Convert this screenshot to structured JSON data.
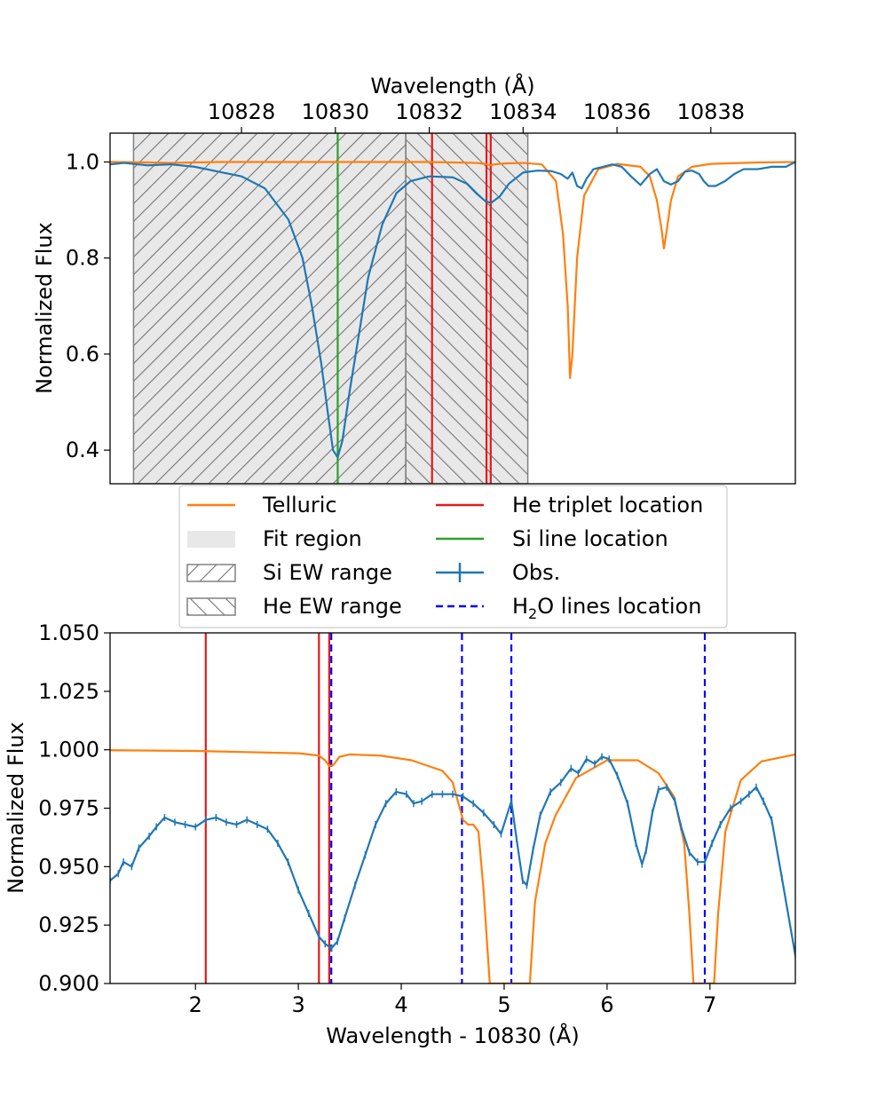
{
  "chart_data": [
    {
      "id": "top",
      "type": "line",
      "xlabel_top": "Wavelength (Å)",
      "ylabel": "Normalized Flux",
      "xlim": [
        10825.2,
        10839.8
      ],
      "ylim": [
        0.33,
        1.06
      ],
      "xticks": [
        10828,
        10830,
        10832,
        10834,
        10836,
        10838
      ],
      "xtick_labels": [
        "10828",
        "10830",
        "10832",
        "10834",
        "10836",
        "10838"
      ],
      "yticks": [
        0.4,
        0.6,
        0.8,
        1.0
      ],
      "ytick_labels": [
        "0.4",
        "0.6",
        "0.8",
        "1.0"
      ],
      "fit_region": [
        10825.7,
        10834.1
      ],
      "si_ew_range": [
        10825.7,
        10831.5
      ],
      "he_ew_range": [
        10831.5,
        10834.1
      ],
      "he_lines": [
        10832.06,
        10833.22,
        10833.31
      ],
      "si_line": 10830.05,
      "telluric": {
        "name": "Telluric",
        "color": "#ff7f0e",
        "x": [
          10825.2,
          10826,
          10826.5,
          10827,
          10827.5,
          10828,
          10829,
          10830,
          10831,
          10832,
          10832.5,
          10833,
          10833.2,
          10833.3,
          10833.4,
          10833.6,
          10834,
          10834.4,
          10834.7,
          10834.85,
          10834.95,
          10835.0,
          10835.05,
          10835.15,
          10835.3,
          10835.6,
          10836,
          10836.5,
          10836.7,
          10836.85,
          10836.95,
          10837.0,
          10837.05,
          10837.15,
          10837.3,
          10837.6,
          10838,
          10839,
          10839.8
        ],
        "y": [
          1.0,
          0.999,
          0.998,
          0.999,
          1.0,
          1.0,
          1.0,
          1.0,
          1.0,
          1.0,
          0.999,
          0.998,
          0.996,
          0.993,
          0.995,
          0.997,
          0.998,
          0.995,
          0.96,
          0.85,
          0.7,
          0.55,
          0.6,
          0.8,
          0.93,
          0.985,
          0.996,
          0.99,
          0.97,
          0.92,
          0.86,
          0.82,
          0.85,
          0.92,
          0.97,
          0.99,
          0.996,
          0.999,
          1.0
        ],
        "width": 2.2
      },
      "observed": {
        "name": "Obs.",
        "color": "#1f77b4",
        "x": [
          10825.2,
          10825.5,
          10826,
          10826.5,
          10827,
          10827.5,
          10828,
          10828.5,
          10829,
          10829.3,
          10829.5,
          10829.7,
          10829.85,
          10829.95,
          10830.05,
          10830.15,
          10830.3,
          10830.5,
          10830.7,
          10831,
          10831.3,
          10831.6,
          10832,
          10832.5,
          10832.8,
          10833.0,
          10833.2,
          10833.32,
          10833.5,
          10833.7,
          10834.0,
          10834.3,
          10834.6,
          10834.8,
          10834.95,
          10835.05,
          10835.15,
          10835.25,
          10835.35,
          10835.5,
          10835.7,
          10835.9,
          10836.1,
          10836.3,
          10836.5,
          10836.7,
          10836.85,
          10837.0,
          10837.15,
          10837.3,
          10837.45,
          10837.6,
          10837.75,
          10837.85,
          10837.95,
          10838.1,
          10838.3,
          10838.5,
          10838.7,
          10839,
          10839.3,
          10839.6,
          10839.8
        ],
        "y": [
          0.995,
          0.998,
          0.993,
          0.995,
          0.99,
          0.98,
          0.97,
          0.945,
          0.88,
          0.8,
          0.7,
          0.58,
          0.47,
          0.4,
          0.385,
          0.42,
          0.52,
          0.64,
          0.76,
          0.87,
          0.935,
          0.96,
          0.97,
          0.968,
          0.955,
          0.935,
          0.918,
          0.915,
          0.928,
          0.955,
          0.978,
          0.982,
          0.981,
          0.975,
          0.965,
          0.978,
          0.95,
          0.945,
          0.965,
          0.985,
          0.99,
          0.995,
          0.99,
          0.97,
          0.952,
          0.975,
          0.985,
          0.96,
          0.953,
          0.96,
          0.98,
          0.982,
          0.975,
          0.96,
          0.95,
          0.95,
          0.96,
          0.975,
          0.985,
          0.985,
          0.99,
          0.99,
          1.0
        ],
        "width": 2.2
      }
    },
    {
      "id": "bottom",
      "type": "line",
      "xlabel": "Wavelength - 10830 (Å)",
      "ylabel": "Normalized Flux",
      "xlim": [
        1.17,
        7.83
      ],
      "ylim": [
        0.9,
        1.05
      ],
      "xticks": [
        2,
        3,
        4,
        5,
        6,
        7
      ],
      "xtick_labels": [
        "2",
        "3",
        "4",
        "5",
        "6",
        "7"
      ],
      "yticks": [
        0.9,
        0.925,
        0.95,
        0.975,
        1.0,
        1.025,
        1.05
      ],
      "ytick_labels": [
        "0.900",
        "0.925",
        "0.950",
        "0.975",
        "1.000",
        "1.025",
        "1.050"
      ],
      "he_lines": [
        2.1,
        3.2,
        3.3
      ],
      "h2o_lines": [
        3.32,
        4.59,
        5.07,
        6.95
      ],
      "telluric": {
        "name": "Telluric",
        "color": "#ff7f0e",
        "x": [
          1.17,
          2.0,
          2.5,
          3.0,
          3.2,
          3.26,
          3.3,
          3.34,
          3.4,
          3.5,
          3.8,
          4.1,
          4.4,
          4.5,
          4.55,
          4.6,
          4.65,
          4.7,
          4.75,
          4.8,
          4.86,
          5.25,
          5.3,
          5.4,
          5.5,
          5.7,
          6.0,
          6.3,
          6.5,
          6.65,
          6.75,
          6.8,
          6.84,
          7.04,
          7.08,
          7.15,
          7.3,
          7.5,
          7.83
        ],
        "y": [
          0.9998,
          0.9995,
          0.999,
          0.9985,
          0.9975,
          0.9955,
          0.993,
          0.9935,
          0.997,
          0.998,
          0.9975,
          0.9955,
          0.991,
          0.986,
          0.978,
          0.97,
          0.968,
          0.968,
          0.965,
          0.94,
          0.9,
          0.9,
          0.935,
          0.96,
          0.972,
          0.988,
          0.9955,
          0.9955,
          0.99,
          0.98,
          0.96,
          0.93,
          0.9,
          0.9,
          0.93,
          0.965,
          0.987,
          0.995,
          0.998
        ],
        "width": 2.2
      },
      "observed": {
        "name": "Obs.",
        "color": "#1f77b4",
        "x": [
          1.17,
          1.25,
          1.3,
          1.38,
          1.45,
          1.55,
          1.62,
          1.7,
          1.8,
          1.9,
          2.0,
          2.1,
          2.2,
          2.3,
          2.4,
          2.5,
          2.6,
          2.7,
          2.8,
          2.9,
          3.0,
          3.1,
          3.2,
          3.26,
          3.32,
          3.38,
          3.45,
          3.55,
          3.65,
          3.75,
          3.85,
          3.95,
          4.05,
          4.12,
          4.2,
          4.3,
          4.4,
          4.5,
          4.6,
          4.7,
          4.8,
          4.9,
          4.97,
          5.07,
          5.12,
          5.18,
          5.22,
          5.28,
          5.35,
          5.45,
          5.55,
          5.65,
          5.72,
          5.8,
          5.88,
          5.95,
          6.02,
          6.1,
          6.2,
          6.28,
          6.34,
          6.38,
          6.44,
          6.5,
          6.58,
          6.66,
          6.72,
          6.8,
          6.88,
          6.95,
          7.02,
          7.1,
          7.2,
          7.3,
          7.38,
          7.45,
          7.52,
          7.6,
          7.7,
          7.83
        ],
        "y": [
          0.944,
          0.947,
          0.952,
          0.95,
          0.958,
          0.963,
          0.967,
          0.971,
          0.969,
          0.968,
          0.967,
          0.97,
          0.971,
          0.969,
          0.968,
          0.97,
          0.968,
          0.966,
          0.96,
          0.952,
          0.94,
          0.93,
          0.92,
          0.917,
          0.915,
          0.918,
          0.928,
          0.942,
          0.955,
          0.968,
          0.977,
          0.982,
          0.981,
          0.977,
          0.978,
          0.981,
          0.981,
          0.981,
          0.98,
          0.977,
          0.973,
          0.968,
          0.964,
          0.978,
          0.962,
          0.944,
          0.942,
          0.957,
          0.972,
          0.982,
          0.986,
          0.992,
          0.99,
          0.996,
          0.994,
          0.997,
          0.996,
          0.989,
          0.977,
          0.96,
          0.951,
          0.957,
          0.973,
          0.983,
          0.984,
          0.978,
          0.967,
          0.956,
          0.952,
          0.952,
          0.96,
          0.968,
          0.975,
          0.978,
          0.981,
          0.984,
          0.978,
          0.97,
          0.945,
          0.912
        ],
        "width": 2.2
      }
    }
  ],
  "legend": {
    "items": [
      {
        "label": "Telluric",
        "kind": "line",
        "color": "#ff7f0e"
      },
      {
        "label": "He triplet location",
        "kind": "line",
        "color": "#e31a1c"
      },
      {
        "label": "Fit region",
        "kind": "patch",
        "color": "#e8e8e8"
      },
      {
        "label": "Si line location",
        "kind": "line",
        "color": "#2ca02c"
      },
      {
        "label": "Si EW range",
        "kind": "hatch-fwd",
        "color": "#808080"
      },
      {
        "label": "Obs.",
        "kind": "errorbar",
        "color": "#1f77b4"
      },
      {
        "label": "He EW range",
        "kind": "hatch-back",
        "color": "#808080"
      },
      {
        "label": "H",
        "sub": "2",
        "suffix": "O lines location",
        "kind": "dashed",
        "color": "#0000ff"
      }
    ]
  },
  "colors": {
    "telluric": "#ff7f0e",
    "observed": "#1f77b4",
    "he": "#e31a1c",
    "si": "#2ca02c",
    "h2o": "#0000ff",
    "fit_region": "#e8e8e8",
    "hatch": "#808080"
  }
}
